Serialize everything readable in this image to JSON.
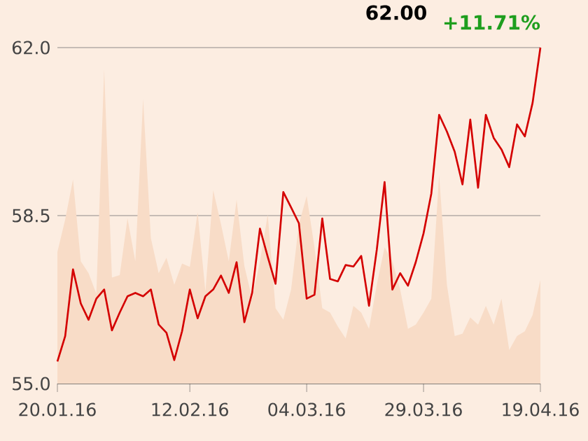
{
  "chart_data": {
    "type": "line",
    "annotations": [
      "62.00",
      "+11.71%"
    ],
    "categories": [
      "20.01.16",
      null,
      null,
      null,
      null,
      null,
      null,
      null,
      null,
      null,
      null,
      null,
      null,
      null,
      null,
      null,
      null,
      "12.02.16",
      null,
      null,
      null,
      null,
      null,
      null,
      null,
      null,
      null,
      null,
      null,
      null,
      null,
      null,
      "04.03.16",
      null,
      null,
      null,
      null,
      null,
      null,
      null,
      null,
      null,
      null,
      null,
      null,
      null,
      null,
      "29.03.16",
      null,
      null,
      null,
      null,
      null,
      null,
      null,
      null,
      null,
      null,
      null,
      null,
      null,
      null,
      "19.04.16"
    ],
    "series": [
      {
        "type": "area",
        "color": "#f8dcc7",
        "values": [
          57.74,
          58.42,
          59.25,
          57.55,
          57.3,
          56.87,
          61.55,
          57.21,
          57.26,
          58.44,
          57.55,
          60.93,
          58.03,
          57.3,
          57.62,
          57.06,
          57.5,
          57.43,
          58.57,
          56.92,
          59.03,
          58.32,
          57.55,
          58.83,
          57.45,
          56.77,
          57.55,
          58.52,
          56.57,
          56.33,
          56.96,
          58.32,
          58.91,
          57.84,
          56.57,
          56.48,
          56.19,
          55.94,
          56.62,
          56.48,
          56.14,
          57.06,
          57.84,
          57.55,
          56.96,
          56.14,
          56.23,
          56.48,
          56.77,
          59.35,
          57.06,
          55.99,
          56.04,
          56.38,
          56.23,
          56.62,
          56.23,
          56.77,
          55.7,
          55.99,
          56.09,
          56.43,
          57.16
        ]
      },
      {
        "color": "#d40000",
        "values": [
          55.46,
          55.99,
          57.38,
          56.67,
          56.33,
          56.77,
          56.96,
          56.11,
          56.48,
          56.82,
          56.89,
          56.82,
          56.96,
          56.23,
          56.06,
          55.49,
          56.09,
          56.96,
          56.36,
          56.82,
          56.96,
          57.25,
          56.89,
          57.53,
          56.28,
          56.89,
          58.23,
          57.64,
          57.08,
          58.99,
          58.67,
          58.34,
          56.77,
          56.85,
          58.44,
          57.18,
          57.13,
          57.47,
          57.44,
          57.66,
          56.62,
          57.79,
          59.2,
          56.96,
          57.3,
          57.04,
          57.53,
          58.13,
          58.96,
          60.6,
          60.25,
          59.83,
          59.15,
          60.5,
          59.08,
          60.6,
          60.12,
          59.88,
          59.51,
          60.4,
          60.15,
          60.85,
          62.0
        ]
      }
    ],
    "ylim": [
      55,
      62
    ],
    "yticks": [
      {
        "value": 55,
        "label": "55.0"
      },
      {
        "value": 58.5,
        "label": "58.5"
      },
      {
        "value": 62,
        "label": "62.0"
      }
    ],
    "grid": "y"
  }
}
